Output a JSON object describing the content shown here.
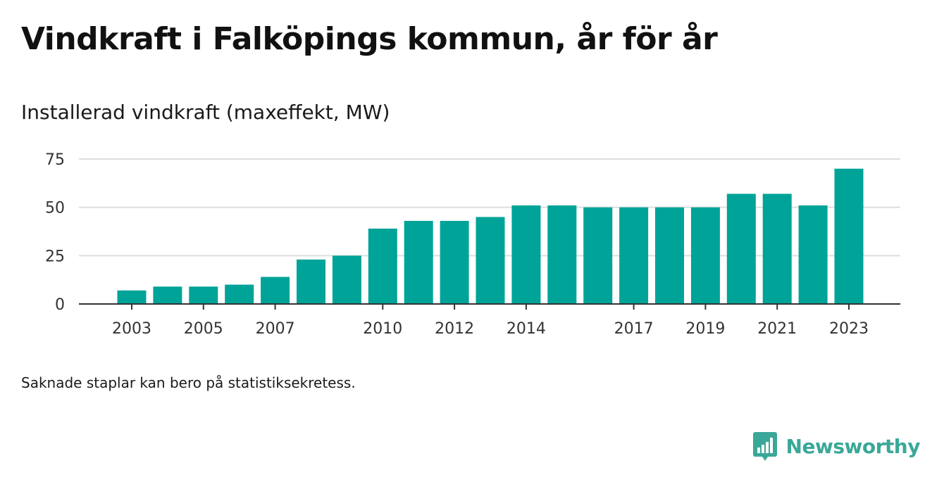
{
  "title": "Vindkraft i Falköpings kommun, år för år",
  "subtitle": "Installerad vindkraft (maxeffekt, MW)",
  "note": "Saknade staplar kan bero på statistiksekretess.",
  "brand": {
    "name": "Newsworthy",
    "icon": "newsworthy-logo-icon"
  },
  "colors": {
    "bar": "#00a398",
    "grid": "#dddddd",
    "axis": "#333333",
    "brand": "#3aa898"
  },
  "chart_data": {
    "type": "bar",
    "title": "",
    "xlabel": "",
    "ylabel": "",
    "ylim": [
      0,
      75
    ],
    "yticks": [
      0,
      25,
      50,
      75
    ],
    "xtick_labels": [
      "2003",
      "2005",
      "2007",
      "2010",
      "2012",
      "2014",
      "2017",
      "2019",
      "2021",
      "2023"
    ],
    "grid": true,
    "series": [
      {
        "points": [
          {
            "x": 2003,
            "y": 7
          },
          {
            "x": 2004,
            "y": 9
          },
          {
            "x": 2005,
            "y": 9
          },
          {
            "x": 2006,
            "y": 10
          },
          {
            "x": 2007,
            "y": 14
          },
          {
            "x": 2008,
            "y": 23
          },
          {
            "x": 2009,
            "y": 25
          },
          {
            "x": 2010,
            "y": 39
          },
          {
            "x": 2011,
            "y": 43
          },
          {
            "x": 2012,
            "y": 43
          },
          {
            "x": 2013,
            "y": 45
          },
          {
            "x": 2014,
            "y": 51
          },
          {
            "x": 2015,
            "y": 51
          },
          {
            "x": 2016,
            "y": 50
          },
          {
            "x": 2017,
            "y": 50
          },
          {
            "x": 2018,
            "y": 50
          },
          {
            "x": 2019,
            "y": 50
          },
          {
            "x": 2020,
            "y": 57
          },
          {
            "x": 2021,
            "y": 57
          },
          {
            "x": 2022,
            "y": 51
          },
          {
            "x": 2023,
            "y": 70
          }
        ]
      }
    ]
  }
}
